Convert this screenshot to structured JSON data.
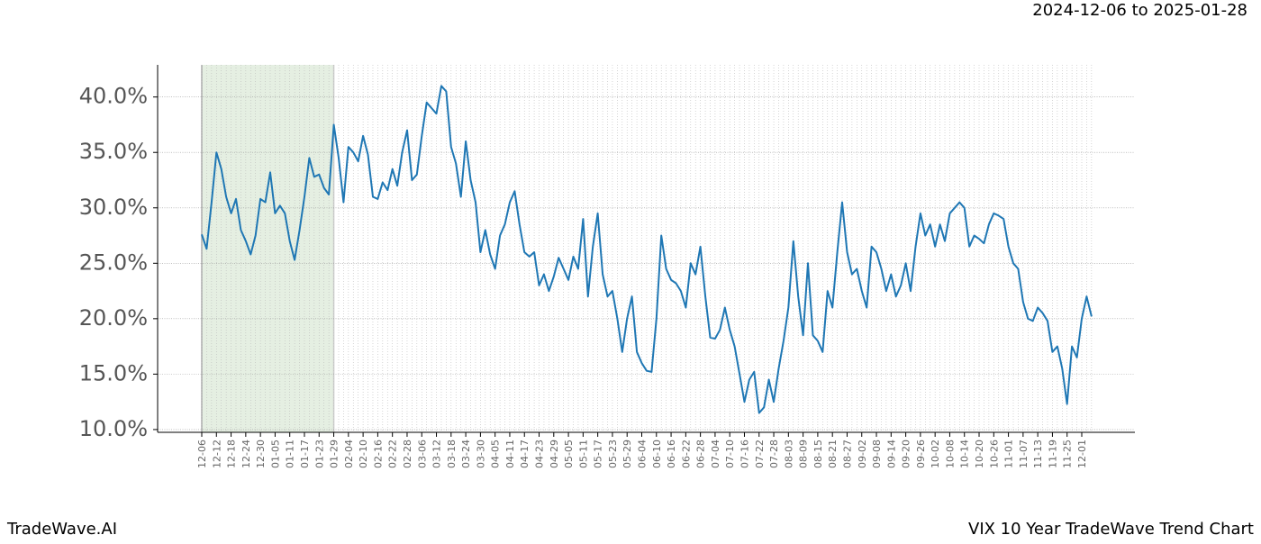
{
  "chart_data": {
    "type": "line",
    "title": "VIX 10 Year TradeWave Trend Chart",
    "subtitle": "2024-12-06 to 2025-01-28",
    "brand": "TradeWave.AI",
    "shade": {
      "from": "12-06",
      "to": "01-29",
      "color": "#e5efe2"
    },
    "grid": true,
    "ylim": [
      9.75,
      42.9
    ],
    "yticks": [
      {
        "value": 10,
        "label": "10.0%"
      },
      {
        "value": 15,
        "label": "15.0%"
      },
      {
        "value": 20,
        "label": "20.0%"
      },
      {
        "value": 25,
        "label": "25.0%"
      },
      {
        "value": 30,
        "label": "30.0%"
      },
      {
        "value": 35,
        "label": "35.0%"
      },
      {
        "value": 40,
        "label": "40.0%"
      }
    ],
    "categories": [
      "12-06",
      null,
      null,
      "12-12",
      null,
      null,
      "12-18",
      null,
      null,
      "12-24",
      null,
      null,
      "12-30",
      null,
      null,
      "01-05",
      null,
      null,
      "01-11",
      null,
      null,
      "01-17",
      null,
      null,
      "01-23",
      null,
      null,
      "01-29",
      null,
      null,
      "02-04",
      null,
      null,
      "02-10",
      null,
      null,
      "02-16",
      null,
      null,
      "02-22",
      null,
      null,
      "02-28",
      null,
      null,
      "03-06",
      null,
      null,
      "03-12",
      null,
      null,
      "03-18",
      null,
      null,
      "03-24",
      null,
      null,
      "03-30",
      null,
      null,
      "04-05",
      null,
      null,
      "04-11",
      null,
      null,
      "04-17",
      null,
      null,
      "04-23",
      null,
      null,
      "04-29",
      null,
      null,
      "05-05",
      null,
      null,
      "05-11",
      null,
      null,
      "05-17",
      null,
      null,
      "05-23",
      null,
      null,
      "05-29",
      null,
      null,
      "06-04",
      null,
      null,
      "06-10",
      null,
      null,
      "06-16",
      null,
      null,
      "06-22",
      null,
      null,
      "06-28",
      null,
      null,
      "07-04",
      null,
      null,
      "07-10",
      null,
      null,
      "07-16",
      null,
      null,
      "07-22",
      null,
      null,
      "07-28",
      null,
      null,
      "08-03",
      null,
      null,
      "08-09",
      null,
      null,
      "08-15",
      null,
      null,
      "08-21",
      null,
      null,
      "08-27",
      null,
      null,
      "09-02",
      null,
      null,
      "09-08",
      null,
      null,
      "09-14",
      null,
      null,
      "09-20",
      null,
      null,
      "09-26",
      null,
      null,
      "10-02",
      null,
      null,
      "10-08",
      null,
      null,
      "10-14",
      null,
      null,
      "10-20",
      null,
      null,
      "10-26",
      null,
      null,
      "11-01",
      null,
      null,
      "11-07",
      null,
      null,
      "11-13",
      null,
      null,
      "11-19",
      null,
      null,
      "11-25",
      null,
      null,
      "12-01",
      null,
      null
    ],
    "series": [
      {
        "name": "VIX",
        "color": "#1f77b4",
        "values": [
          27.6,
          26.3,
          30.5,
          35.0,
          33.5,
          31.0,
          29.5,
          30.8,
          28.0,
          27.0,
          25.8,
          27.5,
          30.8,
          30.5,
          33.2,
          29.5,
          30.2,
          29.5,
          27.0,
          25.3,
          28.0,
          31.0,
          34.5,
          32.8,
          33.0,
          31.8,
          31.2,
          37.5,
          34.5,
          30.5,
          35.5,
          35.0,
          34.2,
          36.5,
          34.8,
          31.0,
          30.8,
          32.3,
          31.6,
          33.5,
          32.0,
          35.0,
          37.0,
          32.5,
          33.0,
          36.5,
          39.5,
          39.0,
          38.5,
          41.0,
          40.5,
          35.5,
          34.0,
          31.0,
          36.0,
          32.5,
          30.5,
          26.0,
          28.0,
          25.8,
          24.5,
          27.5,
          28.5,
          30.5,
          31.5,
          28.5,
          26.0,
          25.6,
          26.0,
          23.0,
          24.0,
          22.5,
          23.8,
          25.5,
          24.5,
          23.5,
          25.6,
          24.5,
          29.0,
          22.0,
          26.5,
          29.5,
          24.0,
          22.0,
          22.5,
          20.0,
          17.0,
          20.0,
          22.0,
          17.0,
          16.0,
          15.3,
          15.2,
          20.0,
          27.5,
          24.5,
          23.5,
          23.2,
          22.5,
          21.0,
          25.0,
          24.0,
          26.5,
          22.0,
          18.3,
          18.2,
          19.0,
          21.0,
          19.0,
          17.5,
          15.0,
          12.5,
          14.5,
          15.2,
          11.5,
          12.0,
          14.5,
          12.5,
          15.5,
          18.0,
          21.0,
          27.0,
          22.0,
          18.5,
          25.0,
          18.5,
          18.0,
          17.0,
          22.5,
          21.0,
          26.0,
          30.5,
          26.0,
          24.0,
          24.5,
          22.5,
          21.0,
          26.5,
          26.0,
          24.5,
          22.5,
          24.0,
          22.0,
          23.0,
          25.0,
          22.5,
          26.5,
          29.5,
          27.5,
          28.5,
          26.5,
          28.5,
          27.0,
          29.5,
          30.0,
          30.5,
          30.0,
          26.5,
          27.5,
          27.2,
          26.8,
          28.5,
          29.5,
          29.3,
          29.0,
          26.5,
          25.0,
          24.5,
          21.5,
          20.0,
          19.8,
          21.0,
          20.5,
          19.8,
          17.0,
          17.5,
          15.5,
          12.3,
          17.5,
          16.5,
          20.0,
          22.0,
          20.2
        ]
      }
    ]
  }
}
